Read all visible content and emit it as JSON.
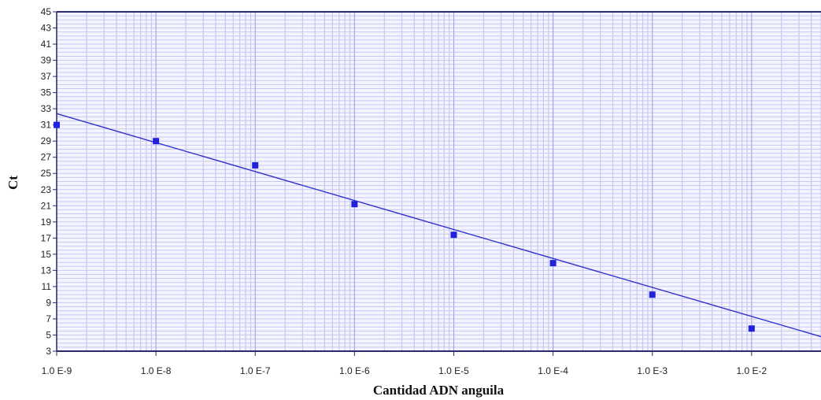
{
  "chart_data": {
    "type": "scatter",
    "xlabel": "Cantidad ADN anguila",
    "ylabel": "Ct",
    "x_scale": "log",
    "xlim": [
      1e-09,
      0.05
    ],
    "ylim": [
      3,
      45
    ],
    "grid": true,
    "y_ticks": [
      "3",
      "5",
      "7",
      "9",
      "11",
      "13",
      "15",
      "17",
      "19",
      "21",
      "23",
      "25",
      "27",
      "29",
      "31",
      "33",
      "35",
      "37",
      "39",
      "41",
      "43",
      "45"
    ],
    "x_ticks": [
      {
        "value": 1e-09,
        "label": "1.0 E-9"
      },
      {
        "value": 1e-08,
        "label": "1.0 E-8"
      },
      {
        "value": 1e-07,
        "label": "1.0 E-7"
      },
      {
        "value": 1e-06,
        "label": "1.0 E-6"
      },
      {
        "value": 1e-05,
        "label": "1.0 E-5"
      },
      {
        "value": 0.0001,
        "label": "1.0 E-4"
      },
      {
        "value": 0.001,
        "label": "1.0 E-3"
      },
      {
        "value": 0.01,
        "label": "1.0 E-2"
      }
    ],
    "series": [
      {
        "points": [
          {
            "x": 1e-09,
            "y": 31.0
          },
          {
            "x": 1e-08,
            "y": 29.0
          },
          {
            "x": 1e-07,
            "y": 26.0
          },
          {
            "x": 1e-06,
            "y": 21.2
          },
          {
            "x": 1e-05,
            "y": 17.4
          },
          {
            "x": 0.0001,
            "y": 13.9
          },
          {
            "x": 0.001,
            "y": 10.0
          },
          {
            "x": 0.01,
            "y": 5.8
          }
        ]
      }
    ],
    "trendline": {
      "x": [
        1e-09,
        0.05
      ],
      "y": [
        32.4,
        4.8
      ]
    },
    "colors": {
      "marker": "#2222dd",
      "line": "#3333cc",
      "grid": "#c8c8f0",
      "plot_bg": "#f4f4ff",
      "axis": "#2a2a6a"
    }
  }
}
